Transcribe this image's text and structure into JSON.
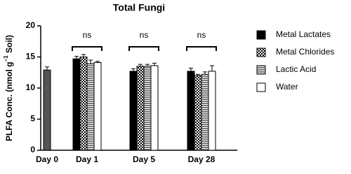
{
  "chart_data": {
    "type": "bar",
    "title": "Total Fungi",
    "y_label": [
      "PLFA Conc. (nmol g",
      "−1",
      " Soil)"
    ],
    "categories": [
      "Day 0",
      "Day 1",
      "Day 5",
      "Day 28"
    ],
    "series": [
      {
        "color": "#555555",
        "values": [
          12.9,
          null,
          null,
          null
        ],
        "errors": [
          0.5,
          null,
          null,
          null
        ]
      },
      {
        "name": "Metal Lactates",
        "color": "#000000",
        "values": [
          null,
          14.7,
          12.7,
          12.7
        ],
        "errors": [
          null,
          0.4,
          0.4,
          0.5
        ]
      },
      {
        "name": "Metal Chlorides",
        "color": "#000000",
        "pattern": "checker",
        "values": [
          null,
          15.0,
          13.5,
          12.0
        ],
        "errors": [
          null,
          0.4,
          0.3,
          0.2
        ]
      },
      {
        "name": "Lactic Acid",
        "color": "#777777",
        "pattern": "stripes",
        "values": [
          null,
          13.9,
          13.5,
          12.2
        ],
        "errors": [
          null,
          0.6,
          0.3,
          0.4
        ]
      },
      {
        "name": "Water",
        "color": "#ffffff",
        "values": [
          null,
          14.1,
          13.6,
          12.7
        ],
        "errors": [
          null,
          0.2,
          0.4,
          0.9
        ]
      }
    ],
    "annotations": [
      null,
      "ns",
      "ns",
      "ns"
    ],
    "ylim": [
      0,
      20
    ],
    "yticks": [
      0,
      5,
      10,
      15,
      20
    ],
    "grid": false
  }
}
